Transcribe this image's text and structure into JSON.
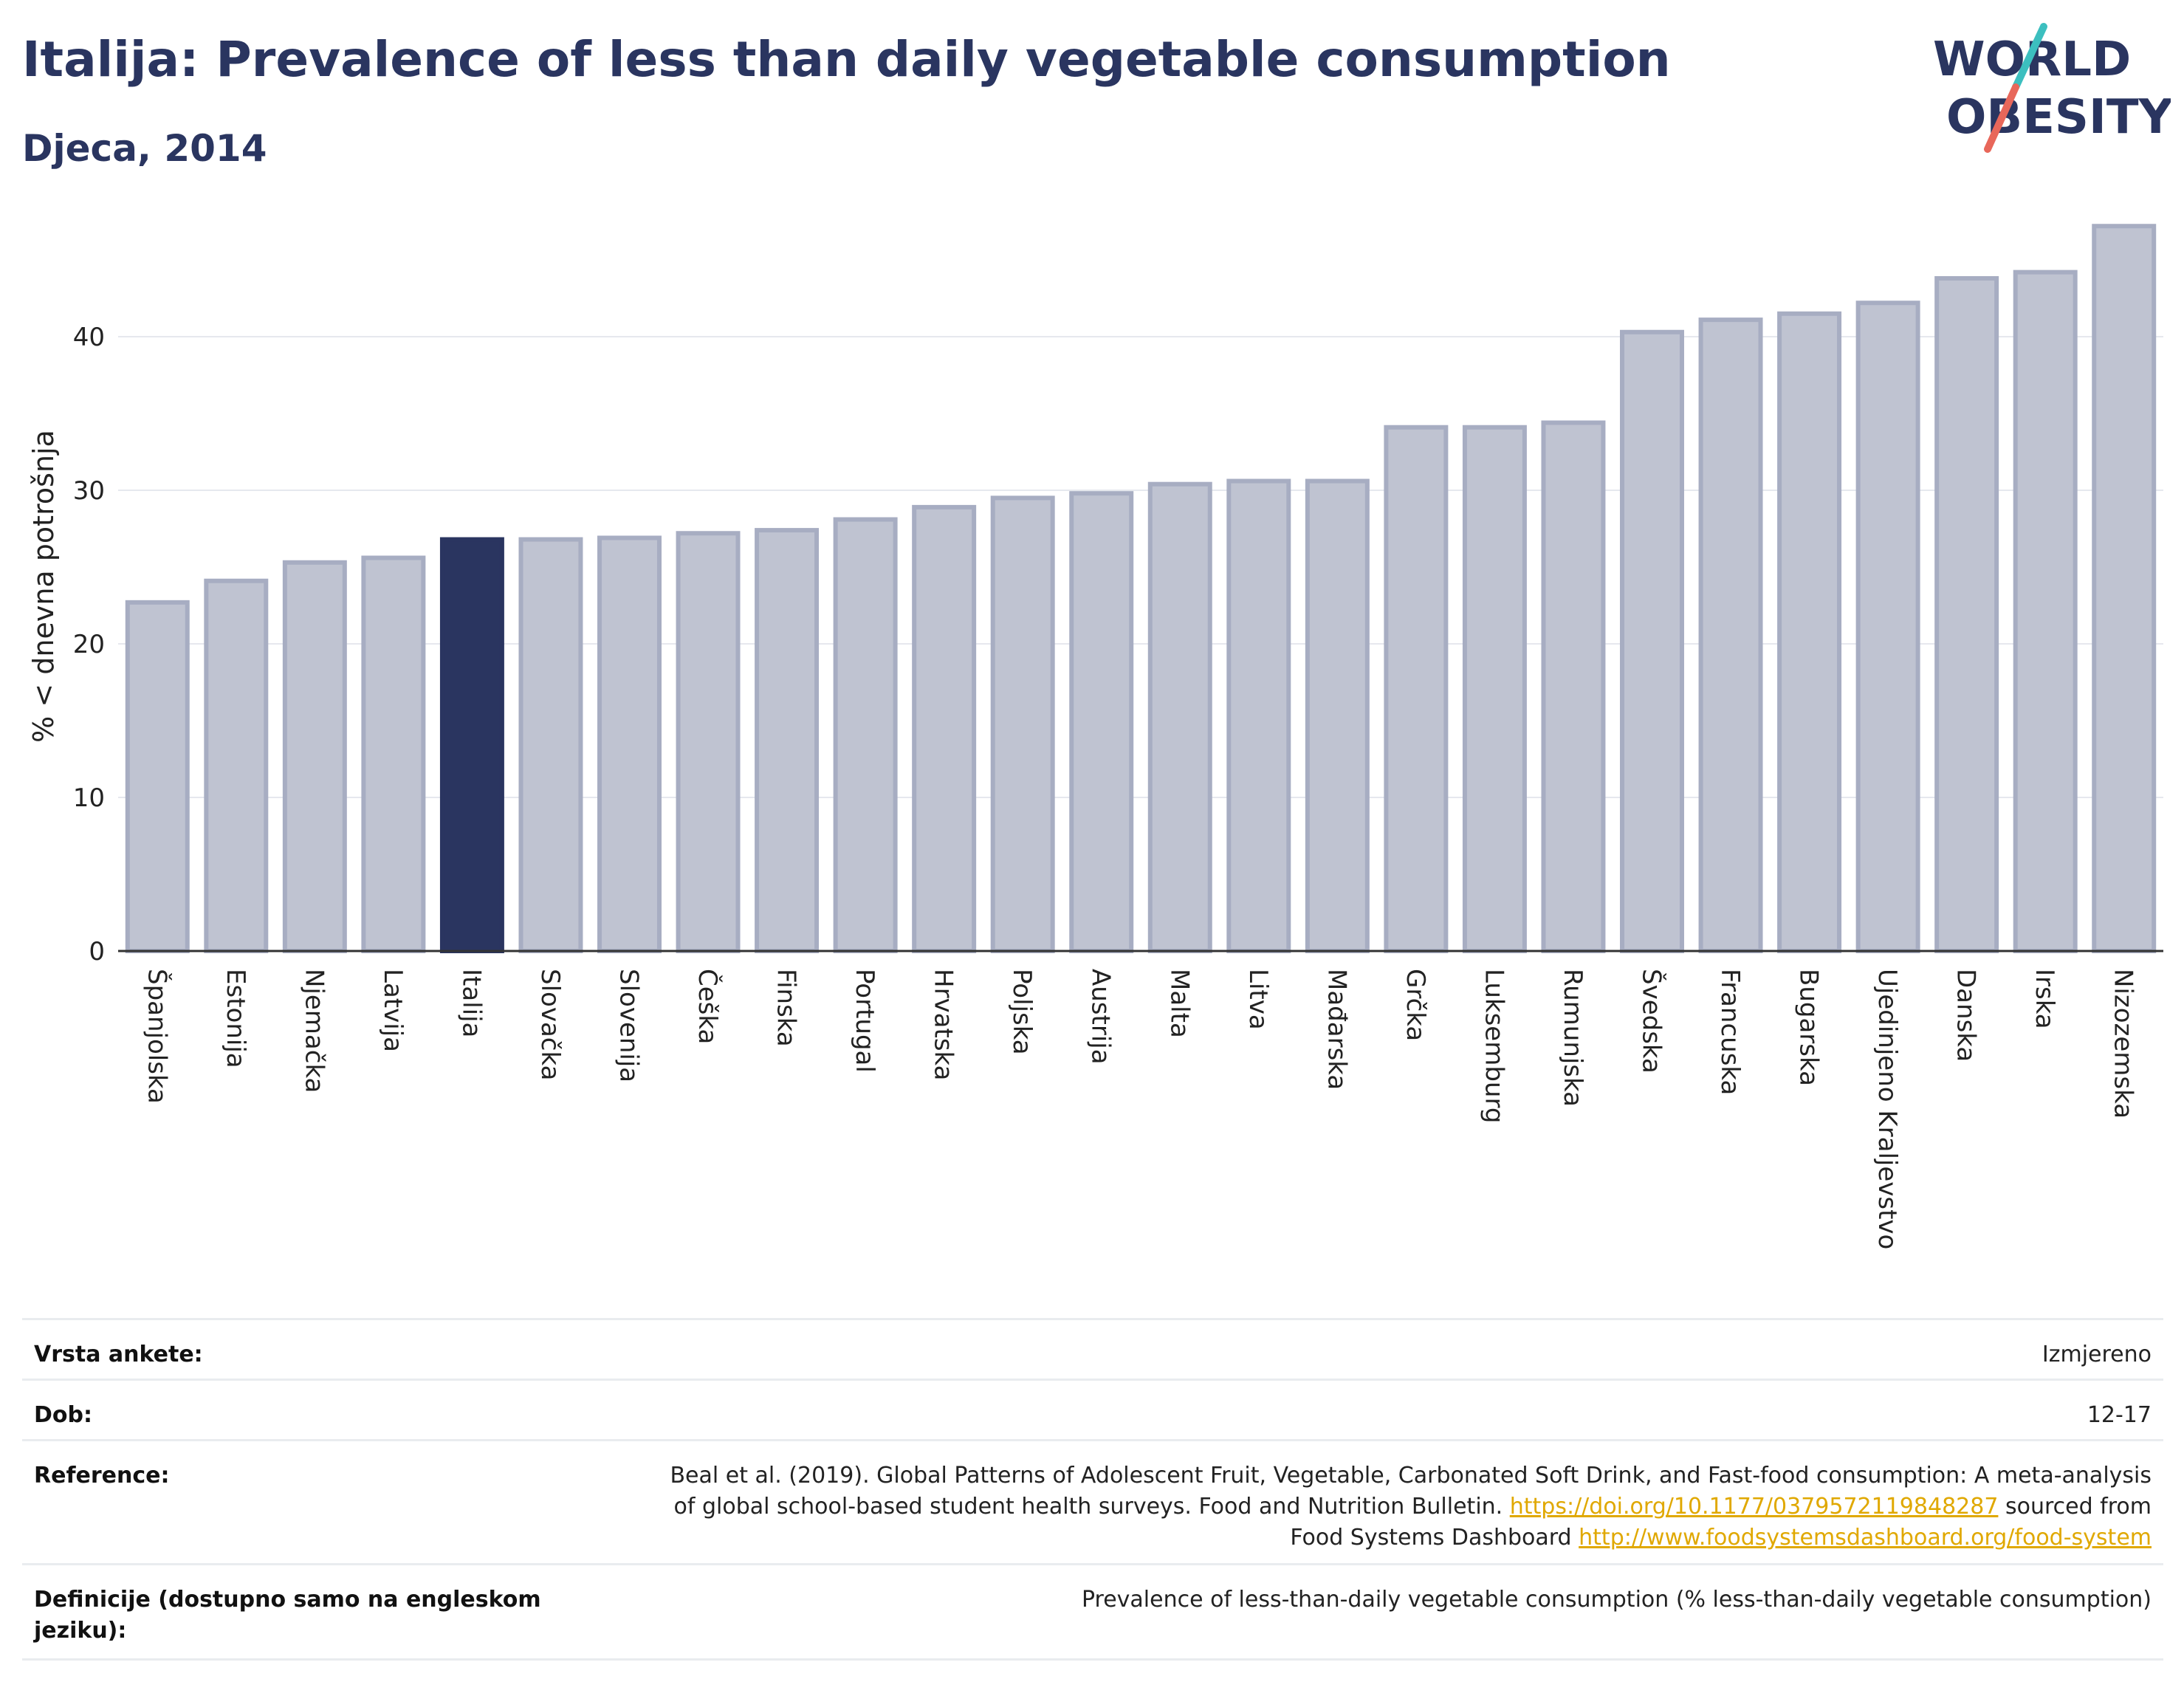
{
  "header": {
    "title": "Italija: Prevalence of less than daily vegetable consumption",
    "subtitle": "Djeca, 2014"
  },
  "logo": {
    "line1": "WORLD",
    "line2": "OBESITY",
    "colors": {
      "text": "#2a3560",
      "slash_teal": "#3cbfbf",
      "slash_red": "#e8675a"
    }
  },
  "chart_data": {
    "type": "bar",
    "ylabel": "% < dnevna potrošnja",
    "xlabel": "",
    "ylim": [
      0,
      47.5
    ],
    "yticks": [
      0,
      10,
      20,
      30,
      40
    ],
    "grid": true,
    "highlight": "Italija",
    "colors": {
      "bar": "#bfc3d1",
      "bar_edge": "#a7adc2",
      "highlight": "#2a3560",
      "grid": "#e6e8ee",
      "axis": "#333333"
    },
    "categories": [
      "Španjolska",
      "Estonija",
      "Njemačka",
      "Latvija",
      "Italija",
      "Slovačka",
      "Slovenija",
      "Češka",
      "Finska",
      "Portugal",
      "Hrvatska",
      "Poljska",
      "Austrija",
      "Malta",
      "Litva",
      "Mađarska",
      "Grčka",
      "Luksemburg",
      "Rumunjska",
      "Švedska",
      "Francuska",
      "Bugarska",
      "Ujedinjeno Kraljevstvo",
      "Danska",
      "Irska",
      "Nizozemska"
    ],
    "values": [
      22.7,
      24.1,
      25.3,
      25.6,
      26.8,
      26.8,
      26.9,
      27.2,
      27.4,
      28.1,
      28.9,
      29.5,
      29.8,
      30.4,
      30.6,
      30.6,
      34.1,
      34.1,
      34.4,
      40.3,
      41.1,
      41.5,
      42.2,
      43.8,
      44.2,
      47.2
    ]
  },
  "meta": {
    "survey_label": "Vrsta ankete:",
    "survey_value": "Izmjereno",
    "age_label": "Dob:",
    "age_value": "12-17",
    "reference_label": "Reference:",
    "reference_line1": "Beal et al. (2019). Global Patterns of Adolescent Fruit, Vegetable, Carbonated Soft Drink, and Fast-food consumption: A meta-analysis",
    "reference_line2_text": "of global school-based student health surveys. Food and Nutrition Bulletin.",
    "reference_line2_link": "https://doi.org/10.1177/0379572119848287",
    "reference_line2_suffix": "sourced from",
    "reference_line3_text": "Food Systems Dashboard",
    "reference_line3_link": "http://www.foodsystemsdashboard.org/food-system",
    "definition_label": "Definicije (dostupno samo na engleskom jeziku):",
    "definition_value": "Prevalence of less-than-daily vegetable consumption (% less-than-daily vegetable consumption)"
  }
}
